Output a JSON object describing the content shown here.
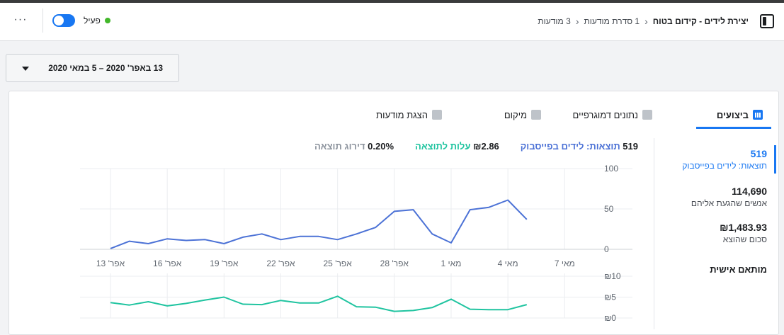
{
  "header": {
    "more_label": "···",
    "status_label": "פעיל",
    "toggle_on": true,
    "breadcrumb": {
      "title": "יצירת לידים - קידום בטוח",
      "level2": "1 סדרת מודעות",
      "level3": "3 מודעות"
    }
  },
  "date_range": {
    "label": "13 באפר' 2020 – 5 במאי 2020"
  },
  "tabs": [
    {
      "label": "ביצועים",
      "icon": "bar-chart-icon",
      "active": true
    },
    {
      "label": "נתונים דמוגרפיים",
      "icon": "people-icon",
      "active": false
    },
    {
      "label": "מיקום",
      "icon": "placement-icon",
      "active": false
    },
    {
      "label": "הצגת מודעות",
      "icon": "line-chart-icon",
      "active": false
    }
  ],
  "legend": {
    "results_value": "519",
    "results_label": "תוצאות: לידים בפייסבוק",
    "cost_value": "₪2.86",
    "cost_label": "עלות לתוצאה",
    "rate_value": "0.20%",
    "rate_label": "דירוג תוצאה"
  },
  "sidebar": {
    "metrics": [
      {
        "value": "519",
        "label": "תוצאות: לידים בפייסבוק",
        "active": true
      },
      {
        "value": "114,690",
        "label": "אנשים שהגעת אליהם",
        "active": false
      },
      {
        "value": "₪1,483.93",
        "label": "סכום שהוצא",
        "active": false
      }
    ],
    "custom_label": "מותאם אישית"
  },
  "colors": {
    "accent": "#1877f2",
    "results_line": "#4c72d6",
    "cost_line": "#20c4a0",
    "status_dot": "#42b72a"
  },
  "chart_data": [
    {
      "type": "line",
      "name": "תוצאות: לידים בפייסבוק",
      "x": [
        "13 באפר'",
        "14 באפר'",
        "15 באפר'",
        "16 באפר'",
        "17 באפר'",
        "18 באפר'",
        "19 באפר'",
        "20 באפר'",
        "21 באפר'",
        "22 באפר'",
        "23 באפר'",
        "24 באפר'",
        "25 באפר'",
        "26 באפר'",
        "27 באפר'",
        "28 באפר'",
        "29 באפר'",
        "30 באפר'",
        "1 במאי",
        "2 במאי",
        "3 במאי",
        "4 במאי",
        "5 במאי"
      ],
      "values": [
        1,
        10,
        7,
        13,
        11,
        12,
        7,
        15,
        19,
        12,
        16,
        16,
        12,
        19,
        27,
        47,
        49,
        19,
        8,
        49,
        52,
        61,
        37
      ],
      "x_tick_labels": [
        "אפר' 13",
        "אפר' 16",
        "אפר' 19",
        "אפר' 22",
        "אפר' 25",
        "אפר' 28",
        "מאי 1",
        "מאי 4",
        "מאי 7"
      ],
      "y_ticks": [
        "100",
        "50",
        "0"
      ],
      "ylim": [
        0,
        100
      ],
      "grid": true
    },
    {
      "type": "line",
      "name": "עלות לתוצאה",
      "values": [
        3.7,
        3.1,
        3.9,
        2.9,
        3.5,
        4.3,
        5.0,
        3.3,
        3.2,
        4.2,
        3.6,
        3.6,
        5.2,
        2.7,
        2.6,
        1.6,
        1.8,
        2.5,
        4.5,
        2.1,
        2.0,
        2.0,
        3.2
      ],
      "y_ticks": [
        "₪10",
        "₪5",
        "₪0"
      ],
      "ylim": [
        0,
        10
      ],
      "grid": true
    }
  ]
}
